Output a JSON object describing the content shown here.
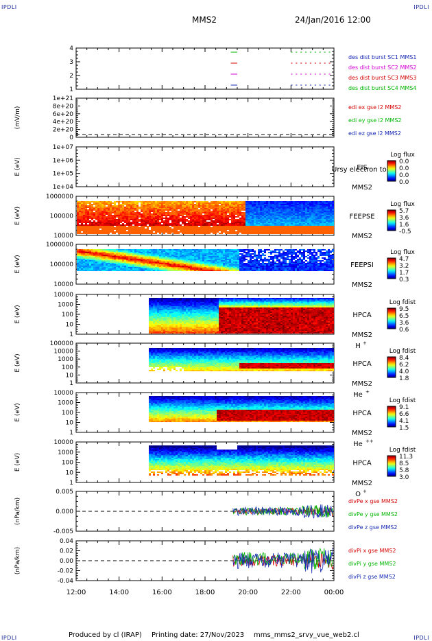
{
  "header": {
    "corner_label": "IPDLI",
    "spacecraft": "MMS2",
    "datetime": "24/Jan/2016 12:00"
  },
  "footer": {
    "produced_by": "Produced by cl (IRAP)",
    "printing_date": "Printing date: 27/Nov/2023",
    "script_name": "mms_mms2_srvy_vue_web2.cl"
  },
  "colors": {
    "axis": "#000000",
    "legend_green": "#00b400",
    "legend_magenta": "#d400d4",
    "legend_red": "#d40000",
    "legend_blue": "#1428b4"
  },
  "time_axis": {
    "ticks": [
      "12:00",
      "14:00",
      "16:00",
      "18:00",
      "20:00",
      "22:00",
      "00:00"
    ]
  },
  "chart_data": [
    {
      "type": "line",
      "id": "burst",
      "ylabel": "",
      "yticks": [
        "4",
        "3",
        "2",
        "1"
      ],
      "legend": [
        {
          "label": "des dist burst SC1 MMS1",
          "color": "#1428b4"
        },
        {
          "label": "des dist burst SC2 MMS2",
          "color": "#d400d4"
        },
        {
          "label": "des dist burst SC3 MMS3",
          "color": "#d40000"
        },
        {
          "label": "des dist burst SC4 MMS4",
          "color": "#00b400"
        }
      ]
    },
    {
      "type": "line",
      "id": "edi",
      "ylabel": "(mV/m)",
      "yticks": [
        "1e+21",
        "8e+20",
        "6e+20",
        "4e+20",
        "2e+20",
        "0"
      ],
      "legend": [
        {
          "label": "edi ex gse l2 MMS2",
          "color": "#d40000"
        },
        {
          "label": "edi ey gse l2 MMS2",
          "color": "#00b400"
        },
        {
          "label": "edi ez gse l2 MMS2",
          "color": "#1428b4"
        }
      ]
    },
    {
      "type": "heatmap",
      "id": "eis",
      "ylabel": "E (eV)",
      "yticks": [
        "1e+07",
        "1e+06",
        "1e+05",
        "1e+04"
      ],
      "instrument": "EIS",
      "overlay": "Ursy electron to",
      "sc": "MMS2",
      "species": "",
      "cbar_title": "Log flux",
      "cbar_ticks": [
        "0.0",
        "0.0",
        "0.0",
        "0.0"
      ]
    },
    {
      "type": "heatmap",
      "id": "feepse",
      "ylabel": "E (eV)",
      "yticks": [
        "1000000",
        "100000",
        "10000"
      ],
      "instrument": "FEEPSE",
      "sc": "MMS2",
      "species": "",
      "cbar_title": "Log flux",
      "cbar_ticks": [
        "5.7",
        "3.6",
        "1.6",
        "-0.5"
      ]
    },
    {
      "type": "heatmap",
      "id": "feepsi",
      "ylabel": "E (eV)",
      "yticks": [
        "1000000",
        "100000",
        "10000"
      ],
      "instrument": "FEEPSI",
      "sc": "MMS2",
      "species": "",
      "cbar_title": "Log flux",
      "cbar_ticks": [
        "4.7",
        "3.2",
        "1.7",
        "0.3"
      ]
    },
    {
      "type": "heatmap",
      "id": "hpca-h",
      "ylabel": "E (eV)",
      "yticks": [
        "10000",
        "1000",
        "100",
        "10",
        "1"
      ],
      "instrument": "HPCA",
      "sc": "MMS2",
      "species": "H",
      "species_sup": "+",
      "cbar_title": "Log fdist",
      "cbar_ticks": [
        "9.5",
        "6.5",
        "3.6",
        "0.6"
      ]
    },
    {
      "type": "heatmap",
      "id": "hpca-he",
      "ylabel": "E (eV)",
      "yticks": [
        "100000",
        "10000",
        "1000",
        "100",
        "10",
        "1"
      ],
      "instrument": "HPCA",
      "sc": "MMS2",
      "species": "He",
      "species_sup": "+",
      "cbar_title": "Log fdist",
      "cbar_ticks": [
        "8.4",
        "6.2",
        "4.0",
        "1.8"
      ]
    },
    {
      "type": "heatmap",
      "id": "hpca-hepp",
      "ylabel": "E (eV)",
      "yticks": [
        "10000",
        "1000",
        "100",
        "10",
        "1"
      ],
      "instrument": "HPCA",
      "sc": "MMS2",
      "species": "He",
      "species_sup": "++",
      "cbar_title": "Log fdist",
      "cbar_ticks": [
        "9.1",
        "6.6",
        "4.1",
        "1.5"
      ]
    },
    {
      "type": "heatmap",
      "id": "hpca-o",
      "ylabel": "E (eV)",
      "yticks": [
        "10000",
        "1000",
        "100",
        "10",
        "1"
      ],
      "instrument": "HPCA",
      "sc": "MMS2",
      "species": "O",
      "species_sup": "+",
      "cbar_title": "Log fdist",
      "cbar_ticks": [
        "11.3",
        "8.5",
        "5.8",
        "3.0"
      ]
    },
    {
      "type": "line",
      "id": "divpe",
      "ylabel": "(nPa/km)",
      "yticks": [
        "0.005",
        "0.000",
        "-0.005"
      ],
      "legend": [
        {
          "label": "divPe x gse MMS2",
          "color": "#d40000"
        },
        {
          "label": "divPe y gse MMS2",
          "color": "#00b400"
        },
        {
          "label": "divPe z gse MMS2",
          "color": "#1428b4"
        }
      ]
    },
    {
      "type": "line",
      "id": "divpi",
      "ylabel": "(nPa/km)",
      "yticks": [
        "0.04",
        "0.02",
        "0.00",
        "-0.02",
        "-0.04"
      ],
      "legend": [
        {
          "label": "divPi x gse MMS2",
          "color": "#d40000"
        },
        {
          "label": "divPi y gse MMS2",
          "color": "#00b400"
        },
        {
          "label": "divPi z gse MMS2",
          "color": "#1428b4"
        }
      ]
    }
  ]
}
